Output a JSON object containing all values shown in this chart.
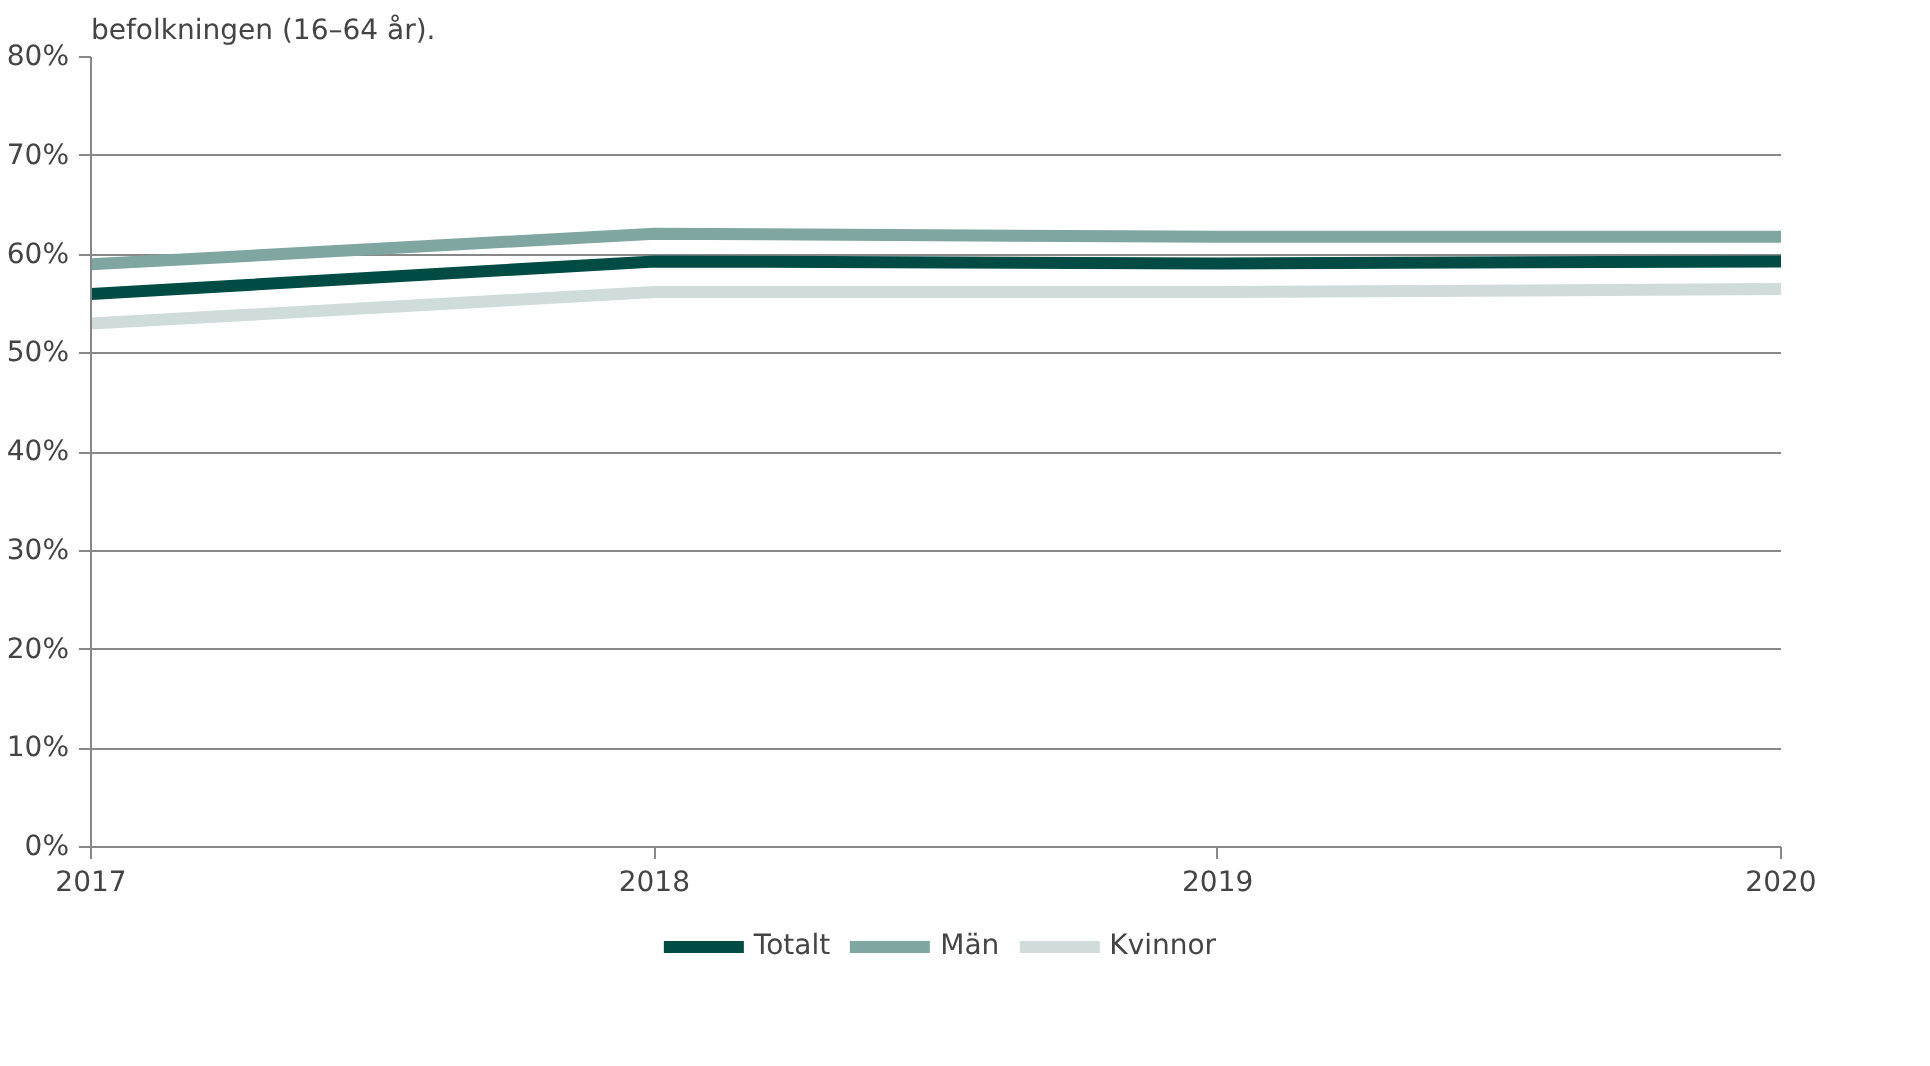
{
  "chart_data": {
    "type": "line",
    "title": "befolkningen (16–64 år).",
    "x": [
      2017,
      2018,
      2019,
      2020
    ],
    "xlim": [
      2017,
      2020
    ],
    "xticks": [
      2017,
      2018,
      2019,
      2020
    ],
    "ylim": [
      0,
      0.8
    ],
    "yticks": [
      {
        "value": 0,
        "label": "0%"
      },
      {
        "value": 0.1,
        "label": "10%"
      },
      {
        "value": 0.2,
        "label": "20%"
      },
      {
        "value": 0.3,
        "label": "30%"
      },
      {
        "value": 0.4,
        "label": "40%"
      },
      {
        "value": 0.5,
        "label": "50%"
      },
      {
        "value": 0.6,
        "label": "60%"
      },
      {
        "value": 0.7,
        "label": "70%"
      },
      {
        "value": 0.8,
        "label": "80%"
      }
    ],
    "grid": "y",
    "legend": "bottom",
    "marker": "none",
    "line_style": "solid",
    "series": [
      {
        "name": "Totalt",
        "color": "#004c45",
        "values": [
          0.56,
          0.593,
          0.591,
          0.593
        ]
      },
      {
        "name": "Män",
        "color": "#80a6a2",
        "values": [
          0.59,
          0.621,
          0.618,
          0.618
        ]
      },
      {
        "name": "Kvinnor",
        "color": "#cfdcda",
        "values": [
          0.53,
          0.562,
          0.562,
          0.565
        ]
      }
    ]
  }
}
